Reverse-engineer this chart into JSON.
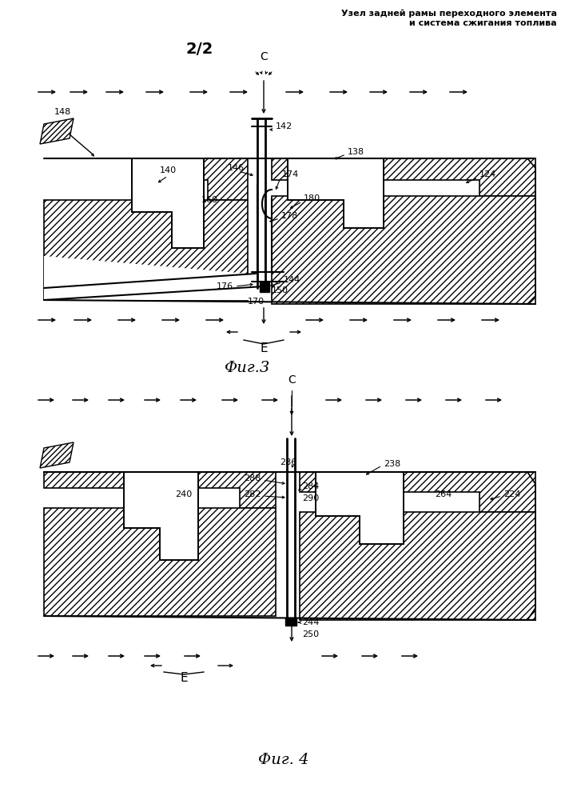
{
  "title_line1": "Узел задней рамы переходного элемента",
  "title_line2": "и система сжигания топлива",
  "page_label": "2/2",
  "fig3_label": "Фиг.3",
  "fig4_label": "Фиг. 4",
  "bg_color": "#ffffff"
}
